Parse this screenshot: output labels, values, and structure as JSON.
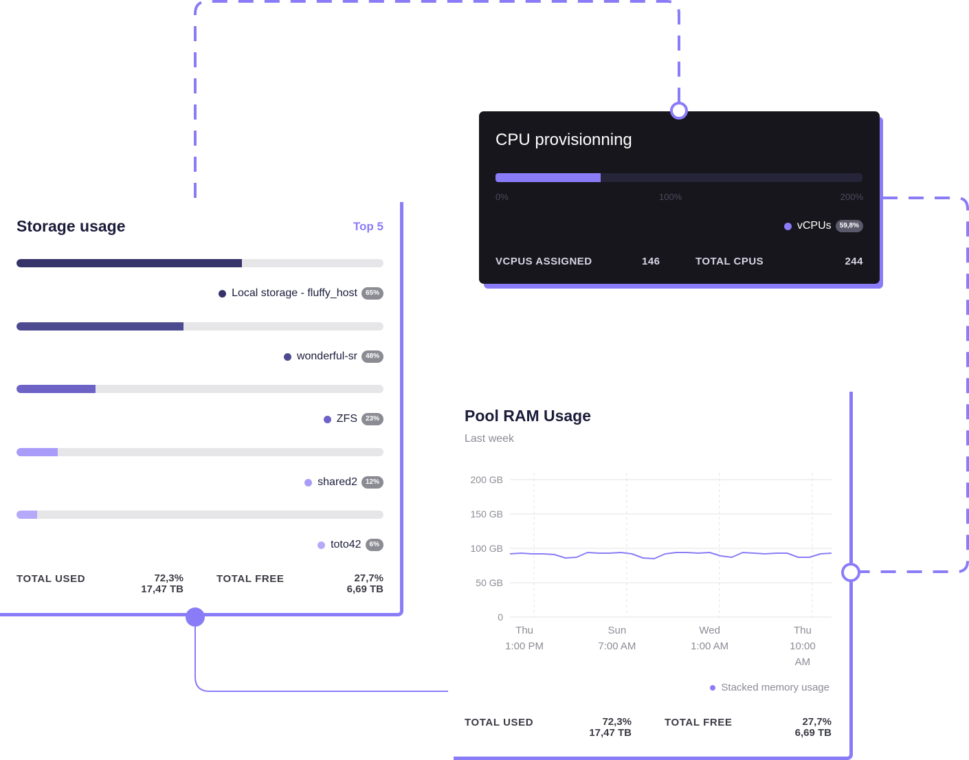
{
  "colors": {
    "accent": "#8a7cf7",
    "dark_card": "#17161c",
    "track": "#e6e6e8"
  },
  "storage": {
    "title": "Storage usage",
    "filter_label": "Top 5",
    "items": [
      {
        "name": "Local storage - fluffy_host",
        "percent_label": "65%",
        "fraction": 0.615,
        "color": "#36336b"
      },
      {
        "name": "wonderful-sr",
        "percent_label": "48%",
        "fraction": 0.455,
        "color": "#4e4a8f"
      },
      {
        "name": "ZFS",
        "percent_label": "23%",
        "fraction": 0.215,
        "color": "#6d63c7"
      },
      {
        "name": "shared2",
        "percent_label": "12%",
        "fraction": 0.113,
        "color": "#a89cf8"
      },
      {
        "name": "toto42",
        "percent_label": "6%",
        "fraction": 0.056,
        "color": "#b4aaf9"
      }
    ],
    "totals": {
      "used_label": "TOTAL USED",
      "used_percent": "72,3%",
      "used_size": "17,47 TB",
      "free_label": "TOTAL FREE",
      "free_percent": "27,7%",
      "free_size": "6,69 TB"
    }
  },
  "cpu": {
    "title": "CPU provisionning",
    "fill_fraction": 0.287,
    "ticks": [
      "0%",
      "100%",
      "200%"
    ],
    "legend_label": "vCPUs",
    "legend_percent": "59,8%",
    "assigned_label": "VCPUS ASSIGNED",
    "assigned_value": "146",
    "total_label": "TOTAL CPUS",
    "total_value": "244"
  },
  "ram": {
    "title": "Pool RAM Usage",
    "subtitle": "Last week",
    "legend_label": "Stacked memory usage",
    "totals": {
      "used_label": "TOTAL USED",
      "used_percent": "72,3%",
      "used_size": "17,47 TB",
      "free_label": "TOTAL FREE",
      "free_percent": "27,7%",
      "free_size": "6,69 TB"
    }
  },
  "chart_data": {
    "type": "line",
    "ylabel": "",
    "ylim": [
      0,
      200
    ],
    "y_ticks": [
      "200 GB",
      "150 GB",
      "100 GB",
      "50 GB",
      "0"
    ],
    "y_tick_values": [
      200,
      150,
      100,
      50,
      0
    ],
    "x_ticks": [
      [
        "Thu",
        "1:00 PM"
      ],
      [
        "Sun",
        "7:00 AM"
      ],
      [
        "Wed",
        "1:00 AM"
      ],
      [
        "Thu",
        "10:00",
        "AM"
      ]
    ],
    "x_tick_positions": [
      0.075,
      0.363,
      0.651,
      0.94
    ],
    "grid": "horizontal",
    "series": [
      {
        "name": "Stacked memory usage",
        "color": "#8a7cf7",
        "values": [
          92,
          93,
          92,
          92,
          91,
          86,
          87,
          94,
          93,
          93,
          94,
          92,
          86,
          85,
          92,
          94,
          94,
          93,
          94,
          89,
          87,
          94,
          93,
          92,
          93,
          93,
          87,
          87,
          92,
          93
        ]
      }
    ]
  }
}
